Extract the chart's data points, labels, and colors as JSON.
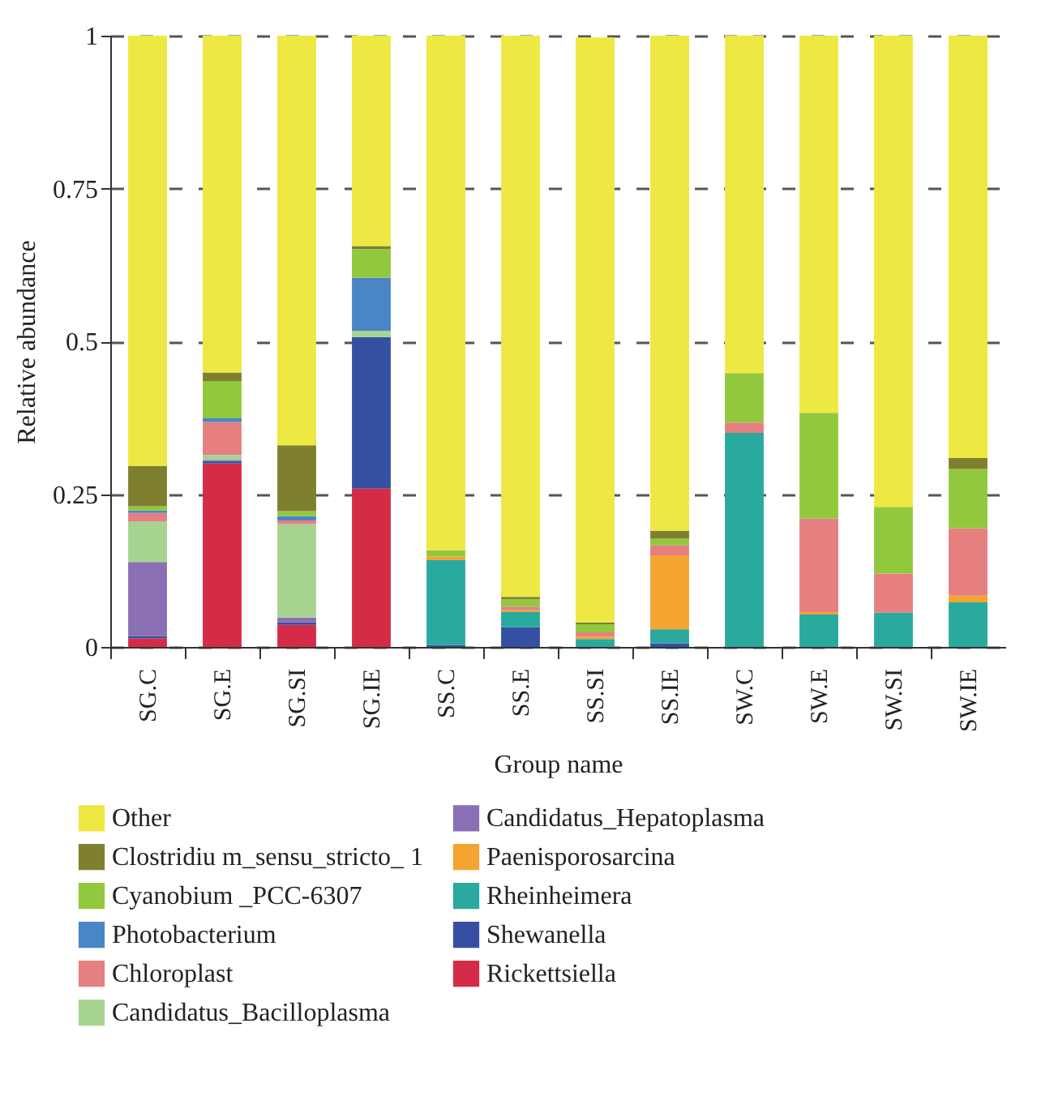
{
  "chart_data": {
    "type": "bar",
    "stacked": true,
    "xlabel": "Group name",
    "ylabel": "Relative abundance",
    "categories": [
      "SG.C",
      "SG.E",
      "SG.SI",
      "SG.IE",
      "SS.C",
      "SS.E",
      "SS.SI",
      "SS.IE",
      "SW.C",
      "SW.E",
      "SW.SI",
      "SW.IE"
    ],
    "ylim": [
      0,
      1
    ],
    "yticks": [
      0,
      0.25,
      0.5,
      0.75,
      1
    ],
    "grid": "y",
    "legend": "bottom",
    "series": [
      {
        "name": "Rickettsiella",
        "color": "#d42c47",
        "values": [
          0.014,
          0.3,
          0.036,
          0.259,
          0,
          0,
          0,
          0,
          0,
          0,
          0,
          0
        ]
      },
      {
        "name": "Shewanella",
        "color": "#3550a3",
        "values": [
          0.004,
          0.004,
          0.004,
          0.248,
          0.003,
          0.032,
          0,
          0.006,
          0,
          0,
          0,
          0
        ]
      },
      {
        "name": "Rheinheimera",
        "color": "#2aa99e",
        "values": [
          0,
          0,
          0,
          0,
          0.139,
          0.025,
          0.013,
          0.023,
          0.35,
          0.053,
          0.056,
          0.073
        ]
      },
      {
        "name": "Paenisporosarcina",
        "color": "#f4a431",
        "values": [
          0,
          0,
          0,
          0,
          0.006,
          0.003,
          0.004,
          0.121,
          0,
          0.004,
          0,
          0.011
        ]
      },
      {
        "name": "Candidatus_Hepatoplasma",
        "color": "#8a6fb5",
        "values": [
          0.121,
          0.002,
          0.008,
          0,
          0,
          0,
          0,
          0,
          0,
          0,
          0,
          0
        ]
      },
      {
        "name": "Candidatus_Bacilloplasma",
        "color": "#a6d490",
        "values": [
          0.066,
          0.008,
          0.153,
          0.01,
          0,
          0,
          0,
          0,
          0,
          0,
          0,
          0
        ]
      },
      {
        "name": "Chloroplast",
        "color": "#e57f80",
        "values": [
          0.014,
          0.054,
          0.006,
          0,
          0,
          0.006,
          0.007,
          0.016,
          0.017,
          0.153,
          0.064,
          0.11
        ]
      },
      {
        "name": "Photobacterium",
        "color": "#4a86c5",
        "values": [
          0.004,
          0.006,
          0.007,
          0.087,
          0,
          0,
          0,
          0,
          0,
          0,
          0,
          0
        ]
      },
      {
        "name": "Cyanobium _PCC-6307",
        "color": "#92c83e",
        "values": [
          0.007,
          0.061,
          0.008,
          0.047,
          0.01,
          0.012,
          0.013,
          0.011,
          0.081,
          0.173,
          0.109,
          0.097
        ]
      },
      {
        "name": "Clostridiu m_sensu_stricto_ 1",
        "color": "#7f7f30",
        "values": [
          0.066,
          0.014,
          0.108,
          0.005,
          0,
          0.004,
          0.003,
          0.013,
          0,
          0,
          0,
          0.018
        ]
      },
      {
        "name": "Other",
        "color": "#ede842",
        "values": [
          0.704,
          0.551,
          0.67,
          0.344,
          0.842,
          0.918,
          0.957,
          0.81,
          0.552,
          0.617,
          0.771,
          0.691
        ]
      }
    ]
  }
}
